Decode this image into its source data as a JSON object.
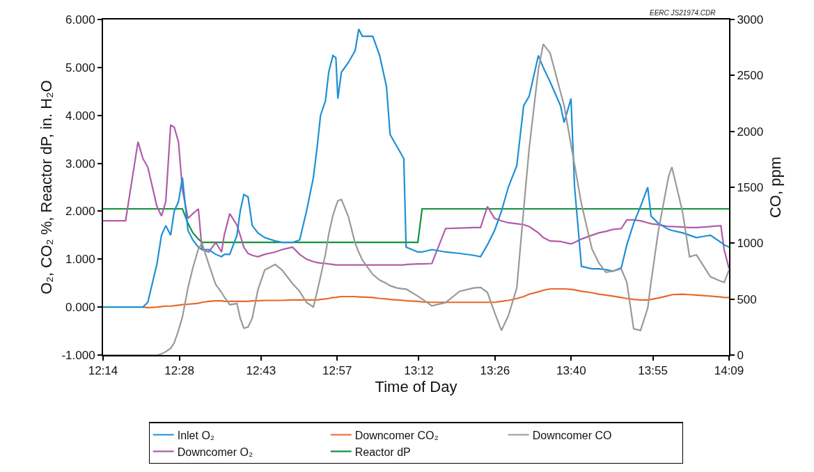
{
  "chart_data": {
    "type": "line",
    "xlabel": "Time of Day",
    "ylabel": "O₂, CO₂ %, Reactor dP, in. H₂O",
    "y2label": "CO, ppm",
    "annotations": [
      "EERC JS21974.CDR"
    ],
    "x": [
      12.233,
      12.27,
      12.302,
      12.34,
      12.355,
      12.37,
      12.398,
      12.412,
      12.425,
      12.44,
      12.451,
      12.464,
      12.476,
      12.493,
      12.508,
      12.525,
      12.536,
      12.557,
      12.578,
      12.596,
      12.604,
      12.621,
      12.643,
      12.653,
      12.664,
      12.677,
      12.69,
      12.707,
      12.728,
      12.76,
      12.781,
      12.813,
      12.835,
      12.856,
      12.877,
      12.888,
      12.899,
      12.914,
      12.924,
      12.937,
      12.946,
      12.952,
      12.963,
      12.984,
      13.005,
      13.016,
      13.027,
      13.059,
      13.08,
      13.101,
      13.112,
      13.133,
      13.154,
      13.161,
      13.197,
      13.21,
      13.24,
      13.282,
      13.325,
      13.368,
      13.389,
      13.41,
      13.432,
      13.453,
      13.474,
      13.5,
      13.521,
      13.538,
      13.566,
      13.581,
      13.602,
      13.634,
      13.645,
      13.666,
      13.677,
      13.698,
      13.73,
      13.752,
      13.773,
      13.794,
      13.82,
      13.837,
      13.858,
      13.879,
      13.901,
      13.911,
      13.933,
      13.965,
      13.975,
      14.007,
      14.029,
      14.05,
      14.093,
      14.125,
      14.135,
      14.15
    ],
    "series": [
      {
        "name": "Inlet O₂",
        "color": "#1e8fd5",
        "values": [
          0,
          0,
          0,
          0,
          0,
          0.1,
          0.9,
          1.5,
          1.7,
          1.5,
          2.0,
          2.2,
          2.7,
          1.6,
          1.4,
          1.25,
          1.2,
          1.2,
          1.1,
          1.05,
          1.1,
          1.1,
          1.5,
          2.0,
          2.35,
          2.3,
          1.7,
          1.55,
          1.45,
          1.38,
          1.35,
          1.35,
          1.4,
          2.0,
          2.7,
          3.3,
          4.0,
          4.3,
          4.9,
          5.25,
          5.2,
          4.35,
          4.9,
          5.1,
          5.35,
          5.8,
          5.65,
          5.65,
          5.25,
          4.6,
          3.6,
          3.35,
          3.1,
          1.25,
          1.15,
          1.15,
          1.2,
          1.15,
          1.12,
          1.08,
          1.05,
          1.3,
          1.6,
          2.0,
          2.5,
          2.95,
          4.2,
          4.4,
          5.25,
          5.0,
          4.7,
          4.2,
          3.85,
          4.35,
          2.5,
          0.85,
          0.8,
          0.8,
          0.78,
          0.75,
          0.82,
          1.3,
          1.75,
          2.1,
          2.5,
          1.9,
          1.75,
          1.62,
          1.6,
          1.55,
          1.5,
          1.45,
          1.5,
          1.35,
          1.3,
          1.25
        ]
      },
      {
        "name": "Downcomer CO₂",
        "color": "#e8692a",
        "values": [
          null,
          null,
          null,
          null,
          0,
          -0.01,
          0,
          0.01,
          0.02,
          0.02,
          0.03,
          0.04,
          0.05,
          0.06,
          0.07,
          0.08,
          0.1,
          0.12,
          0.13,
          0.13,
          0.12,
          0.12,
          0.12,
          0.12,
          0.12,
          0.12,
          0.13,
          0.13,
          0.14,
          0.14,
          0.14,
          0.15,
          0.15,
          0.15,
          0.15,
          0.15,
          0.16,
          0.17,
          0.18,
          0.2,
          0.2,
          0.21,
          0.22,
          0.22,
          0.22,
          0.21,
          0.21,
          0.2,
          0.18,
          0.17,
          0.16,
          0.15,
          0.14,
          0.13,
          0.12,
          0.11,
          0.1,
          0.1,
          0.1,
          0.1,
          0.1,
          0.1,
          0.1,
          0.12,
          0.14,
          0.18,
          0.22,
          0.27,
          0.32,
          0.35,
          0.38,
          0.38,
          0.38,
          0.37,
          0.36,
          0.33,
          0.3,
          0.27,
          0.25,
          0.23,
          0.2,
          0.18,
          0.16,
          0.15,
          0.15,
          0.16,
          0.19,
          0.24,
          0.26,
          0.27,
          0.26,
          0.25,
          0.23,
          0.21,
          0.2,
          0.2
        ]
      },
      {
        "name": "Downcomer CO",
        "color": "#999999",
        "axis": "y2",
        "values": [
          0,
          0,
          0,
          0,
          0,
          0,
          0,
          10,
          30,
          60,
          110,
          220,
          340,
          600,
          780,
          950,
          1000,
          810,
          630,
          560,
          520,
          450,
          460,
          330,
          240,
          250,
          330,
          580,
          760,
          810,
          760,
          640,
          570,
          470,
          430,
          560,
          700,
          900,
          1080,
          1250,
          1330,
          1380,
          1390,
          1240,
          1000,
          920,
          850,
          720,
          670,
          640,
          620,
          600,
          590,
          590,
          527,
          500,
          440,
          469,
          570,
          600,
          605,
          560,
          380,
          220,
          350,
          600,
          1300,
          1850,
          2550,
          2780,
          2700,
          2350,
          2230,
          1880,
          1700,
          1350,
          950,
          820,
          740,
          750,
          770,
          650,
          234,
          220,
          420,
          650,
          1100,
          1600,
          1680,
          1289,
          879,
          896,
          700,
          660,
          650,
          760
        ]
      },
      {
        "name": "Downcomer O₂",
        "color": "#b15ba9",
        "values": [
          1.8,
          1.8,
          1.8,
          3.45,
          3.1,
          2.92,
          2.1,
          1.9,
          2.2,
          3.8,
          3.75,
          3.45,
          2.45,
          1.85,
          1.95,
          2.05,
          1.2,
          1.15,
          1.35,
          1.15,
          1.5,
          1.95,
          1.71,
          1.5,
          1.25,
          1.12,
          1.08,
          1.05,
          1.1,
          1.15,
          1.2,
          1.25,
          1.1,
          1.0,
          0.95,
          0.93,
          0.92,
          0.91,
          0.9,
          0.89,
          0.88,
          0.88,
          0.88,
          0.88,
          0.88,
          0.88,
          0.88,
          0.88,
          0.88,
          0.88,
          0.88,
          0.88,
          0.88,
          0.89,
          0.9,
          0.9,
          0.91,
          1.64,
          1.65,
          1.66,
          1.66,
          2.1,
          1.85,
          1.8,
          1.76,
          1.74,
          1.72,
          1.68,
          1.55,
          1.45,
          1.38,
          1.37,
          1.35,
          1.32,
          1.35,
          1.42,
          1.5,
          1.55,
          1.58,
          1.62,
          1.64,
          1.82,
          1.82,
          1.8,
          1.76,
          1.74,
          1.72,
          1.68,
          1.68,
          1.67,
          1.66,
          1.66,
          1.68,
          1.7,
          1.2,
          0.8
        ]
      },
      {
        "name": "Reactor dP",
        "color": "#12923f",
        "values": [
          2.05,
          2.05,
          2.05,
          2.05,
          2.05,
          2.05,
          2.05,
          2.05,
          2.05,
          2.05,
          2.05,
          2.05,
          2.05,
          1.75,
          1.55,
          1.42,
          1.35,
          1.35,
          1.35,
          1.35,
          1.35,
          1.35,
          1.35,
          1.35,
          1.35,
          1.35,
          1.35,
          1.35,
          1.35,
          1.35,
          1.35,
          1.35,
          1.35,
          1.35,
          1.35,
          1.35,
          1.35,
          1.35,
          1.35,
          1.35,
          1.35,
          1.35,
          1.35,
          1.35,
          1.35,
          1.35,
          1.35,
          1.35,
          1.35,
          1.35,
          1.35,
          1.35,
          1.35,
          1.35,
          1.35,
          2.05,
          2.05,
          2.05,
          2.05,
          2.05,
          2.05,
          2.05,
          2.05,
          2.05,
          2.05,
          2.05,
          2.05,
          2.05,
          2.05,
          2.05,
          2.05,
          2.05,
          2.05,
          2.05,
          2.05,
          2.05,
          2.05,
          2.05,
          2.05,
          2.05,
          2.05,
          2.05,
          2.05,
          2.05,
          2.05,
          2.05,
          2.05,
          2.05,
          2.05,
          2.05,
          2.05,
          2.05,
          2.05,
          2.05,
          2.05,
          2.05
        ]
      }
    ],
    "xlim": [
      12.233,
      14.15
    ],
    "xticks": [
      {
        "value": 12.233,
        "label": "12:14"
      },
      {
        "value": 12.4667,
        "label": "12:28"
      },
      {
        "value": 12.7167,
        "label": "12:43"
      },
      {
        "value": 12.95,
        "label": "12:57"
      },
      {
        "value": 13.2,
        "label": "13:12"
      },
      {
        "value": 13.4333,
        "label": "13:26"
      },
      {
        "value": 13.6667,
        "label": "13:40"
      },
      {
        "value": 13.9167,
        "label": "13:55"
      },
      {
        "value": 14.15,
        "label": "14:09"
      }
    ],
    "ylim": [
      -1,
      6
    ],
    "yticks": [
      {
        "value": -1,
        "label": "-1.000"
      },
      {
        "value": 0,
        "label": "0.000"
      },
      {
        "value": 1,
        "label": "1.000"
      },
      {
        "value": 2,
        "label": "2.000"
      },
      {
        "value": 3,
        "label": "3.000"
      },
      {
        "value": 4,
        "label": "4.000"
      },
      {
        "value": 5,
        "label": "5.000"
      },
      {
        "value": 6,
        "label": "6.000"
      }
    ],
    "y2lim": [
      0,
      3000
    ],
    "y2ticks": [
      0,
      500,
      1000,
      1500,
      2000,
      2500,
      3000
    ],
    "legend": "bottom",
    "line_style": "solid"
  }
}
